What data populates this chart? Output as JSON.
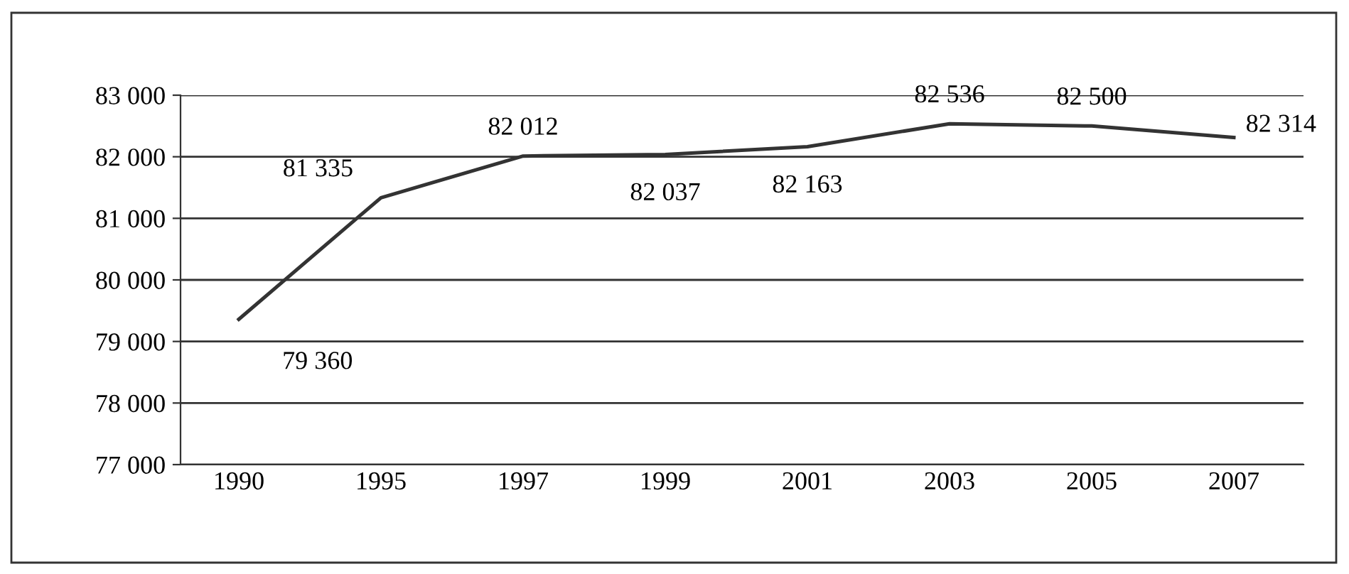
{
  "chart_data": {
    "type": "line",
    "categories": [
      "1990",
      "1995",
      "1997",
      "1999",
      "2001",
      "2003",
      "2005",
      "2007"
    ],
    "series": [
      {
        "color": "#333333",
        "values": [
          79360,
          81335,
          82012,
          82037,
          82163,
          82536,
          82500,
          82314
        ],
        "value_labels": [
          "79 360",
          "81 335",
          "82 012",
          "82 037",
          "82 163",
          "82 536",
          "82 500",
          "82 314"
        ]
      }
    ],
    "ylim": [
      77000,
      83000
    ],
    "yticks": [
      {
        "value": 77000,
        "label": "77 000"
      },
      {
        "value": 78000,
        "label": "78 000"
      },
      {
        "value": 79000,
        "label": "79 000"
      },
      {
        "value": 80000,
        "label": "80 000"
      },
      {
        "value": 81000,
        "label": "81 000"
      },
      {
        "value": 82000,
        "label": "82 000"
      },
      {
        "value": 83000,
        "label": "83 000"
      }
    ],
    "grid": "y",
    "marker": "none",
    "line_style": "solid"
  }
}
